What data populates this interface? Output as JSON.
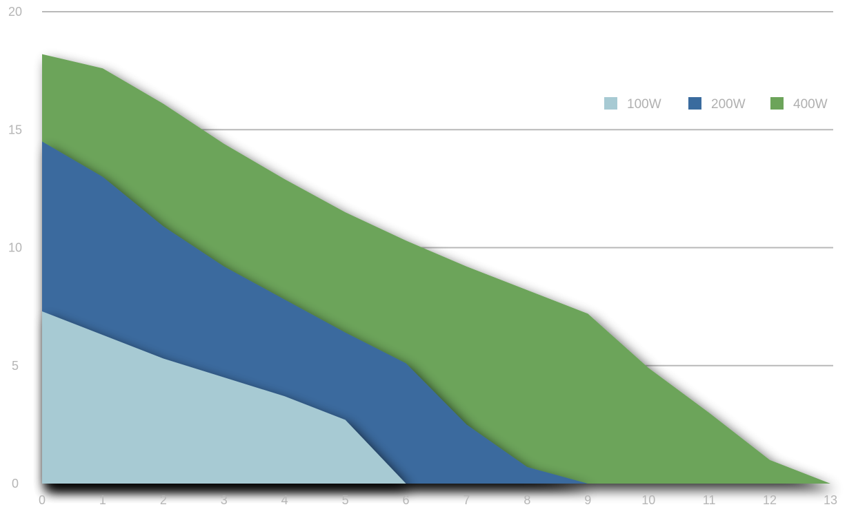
{
  "chart_data": {
    "type": "area",
    "stacked": false,
    "x": [
      0,
      1,
      2,
      3,
      4,
      5,
      6,
      7,
      8,
      9,
      10,
      11,
      12,
      13
    ],
    "series": [
      {
        "name": "400W",
        "color": "#6ca45a",
        "values": [
          18.2,
          17.6,
          16.1,
          14.4,
          12.9,
          11.5,
          10.3,
          9.2,
          8.2,
          7.2,
          4.9,
          3.0,
          1.0,
          0.0
        ]
      },
      {
        "name": "200W",
        "color": "#3a6b9e",
        "values": [
          14.5,
          13.0,
          10.9,
          9.2,
          7.8,
          6.4,
          5.1,
          2.5,
          0.7,
          0.0,
          null,
          null,
          null,
          null
        ]
      },
      {
        "name": "100W",
        "color": "#a7cad3",
        "values": [
          7.3,
          6.3,
          5.3,
          4.5,
          3.7,
          2.7,
          0.0,
          null,
          null,
          null,
          null,
          null,
          null,
          null
        ]
      }
    ],
    "legend_order": [
      "100W",
      "200W",
      "400W"
    ],
    "xlim": [
      0,
      13
    ],
    "ylim": [
      0,
      20
    ],
    "yticks": [
      0,
      5,
      10,
      15,
      20
    ],
    "xticks": [
      0,
      1,
      2,
      3,
      4,
      5,
      6,
      7,
      8,
      9,
      10,
      11,
      12,
      13
    ],
    "grid": "horizontal",
    "legend": "top-right",
    "title": "",
    "xlabel": "",
    "ylabel": ""
  }
}
